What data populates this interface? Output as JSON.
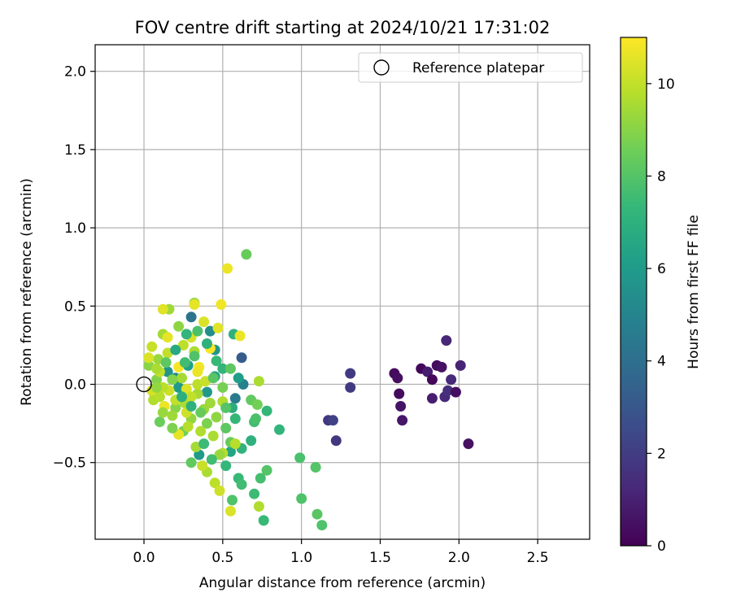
{
  "chart_data": {
    "type": "scatter",
    "title": "FOV centre drift starting at 2024/10/21 17:31:02",
    "xlabel": "Angular distance from reference (arcmin)",
    "ylabel": "Rotation from reference (arcmin)",
    "xlim": [
      -0.31,
      2.83
    ],
    "ylim": [
      -0.99,
      2.17
    ],
    "xticks": [
      "0.0",
      "0.5",
      "1.0",
      "1.5",
      "2.0",
      "2.5"
    ],
    "yticks": [
      "−0.5",
      "0.0",
      "0.5",
      "1.0",
      "1.5",
      "2.0"
    ],
    "grid": true,
    "legend": {
      "location": "upper-right",
      "entries": [
        "Reference platepar"
      ]
    },
    "reference_point": {
      "x": 0.0,
      "y": 0.0
    },
    "colorbar": {
      "label": "Hours from first FF file",
      "range": [
        0,
        11
      ],
      "ticks": [
        "0",
        "2",
        "4",
        "6",
        "8",
        "10"
      ],
      "colormap": [
        "#440154",
        "#482878",
        "#3e4989",
        "#31688e",
        "#26828e",
        "#1f9e89",
        "#35b779",
        "#6ece58",
        "#b5de2b",
        "#fde725"
      ]
    },
    "series": [
      {
        "color_value": "hours",
        "points": [
          {
            "x": 1.59,
            "y": 0.07,
            "h": 0.3
          },
          {
            "x": 1.61,
            "y": 0.04,
            "h": 0.4
          },
          {
            "x": 1.62,
            "y": -0.06,
            "h": 0.3
          },
          {
            "x": 1.63,
            "y": -0.14,
            "h": 0.6
          },
          {
            "x": 1.64,
            "y": -0.23,
            "h": 0.7
          },
          {
            "x": 1.76,
            "y": 0.1,
            "h": 0.2
          },
          {
            "x": 1.8,
            "y": 0.08,
            "h": 0.9
          },
          {
            "x": 1.83,
            "y": 0.03,
            "h": 0.2
          },
          {
            "x": 1.83,
            "y": -0.09,
            "h": 0.9
          },
          {
            "x": 1.86,
            "y": 0.12,
            "h": 0.3
          },
          {
            "x": 1.89,
            "y": 0.11,
            "h": 0.5
          },
          {
            "x": 1.91,
            "y": -0.08,
            "h": 1.3
          },
          {
            "x": 1.92,
            "y": 0.28,
            "h": 1.2
          },
          {
            "x": 1.93,
            "y": -0.04,
            "h": 1.5
          },
          {
            "x": 1.95,
            "y": 0.03,
            "h": 1.3
          },
          {
            "x": 1.98,
            "y": -0.05,
            "h": 0.4
          },
          {
            "x": 2.01,
            "y": 0.12,
            "h": 1.1
          },
          {
            "x": 2.06,
            "y": -0.38,
            "h": 0.5
          },
          {
            "x": 1.31,
            "y": 0.07,
            "h": 1.9
          },
          {
            "x": 1.31,
            "y": -0.02,
            "h": 1.9
          },
          {
            "x": 1.17,
            "y": -0.23,
            "h": 1.8
          },
          {
            "x": 1.2,
            "y": -0.23,
            "h": 2.2
          },
          {
            "x": 1.22,
            "y": -0.36,
            "h": 1.8
          },
          {
            "x": 0.62,
            "y": 0.17,
            "h": 3.2
          },
          {
            "x": 0.3,
            "y": 0.43,
            "h": 4.2
          },
          {
            "x": 0.58,
            "y": -0.09,
            "h": 4.5
          },
          {
            "x": 0.63,
            "y": 0.0,
            "h": 4.8
          },
          {
            "x": 0.42,
            "y": 0.34,
            "h": 5.4
          },
          {
            "x": 0.45,
            "y": 0.22,
            "h": 5.8
          },
          {
            "x": 0.6,
            "y": 0.04,
            "h": 6.1
          },
          {
            "x": 0.55,
            "y": -0.43,
            "h": 6.4
          },
          {
            "x": 0.2,
            "y": 0.04,
            "h": 5.2
          },
          {
            "x": 0.22,
            "y": -0.02,
            "h": 6.0
          },
          {
            "x": 0.15,
            "y": 0.08,
            "h": 5.7
          },
          {
            "x": 0.45,
            "y": 0.05,
            "h": 6.3
          },
          {
            "x": 0.4,
            "y": -0.05,
            "h": 5.9
          },
          {
            "x": 0.28,
            "y": 0.12,
            "h": 6.2
          },
          {
            "x": 0.35,
            "y": -0.45,
            "h": 6.0
          },
          {
            "x": 0.57,
            "y": 0.32,
            "h": 7.0
          },
          {
            "x": 0.5,
            "y": 0.1,
            "h": 7.2
          },
          {
            "x": 0.56,
            "y": -0.15,
            "h": 6.8
          },
          {
            "x": 0.58,
            "y": -0.22,
            "h": 7.3
          },
          {
            "x": 0.62,
            "y": -0.41,
            "h": 7.1
          },
          {
            "x": 0.6,
            "y": -0.6,
            "h": 7.4
          },
          {
            "x": 0.62,
            "y": -0.64,
            "h": 7.6
          },
          {
            "x": 0.68,
            "y": -0.36,
            "h": 7.0
          },
          {
            "x": 0.7,
            "y": -0.7,
            "h": 7.5
          },
          {
            "x": 0.74,
            "y": -0.6,
            "h": 7.7
          },
          {
            "x": 0.76,
            "y": -0.87,
            "h": 7.4
          },
          {
            "x": 0.7,
            "y": -0.24,
            "h": 7.6
          },
          {
            "x": 0.71,
            "y": -0.22,
            "h": 7.8
          },
          {
            "x": 0.78,
            "y": -0.17,
            "h": 7.3
          },
          {
            "x": 0.86,
            "y": -0.29,
            "h": 7.2
          },
          {
            "x": 0.56,
            "y": -0.74,
            "h": 7.9
          },
          {
            "x": 0.78,
            "y": -0.55,
            "h": 8.0
          },
          {
            "x": 0.99,
            "y": -0.47,
            "h": 7.8
          },
          {
            "x": 1.0,
            "y": -0.73,
            "h": 7.9
          },
          {
            "x": 1.09,
            "y": -0.53,
            "h": 8.0
          },
          {
            "x": 1.1,
            "y": -0.83,
            "h": 8.1
          },
          {
            "x": 1.13,
            "y": -0.9,
            "h": 7.9
          },
          {
            "x": 0.65,
            "y": 0.83,
            "h": 8.4
          },
          {
            "x": 0.55,
            "y": 0.1,
            "h": 8.2
          },
          {
            "x": 0.68,
            "y": -0.1,
            "h": 8.3
          },
          {
            "x": 0.72,
            "y": -0.13,
            "h": 8.6
          },
          {
            "x": 0.55,
            "y": -0.37,
            "h": 8.4
          },
          {
            "x": 0.52,
            "y": -0.28,
            "h": 8.2
          },
          {
            "x": 0.1,
            "y": -0.24,
            "h": 8.5
          },
          {
            "x": 0.3,
            "y": -0.5,
            "h": 8.3
          },
          {
            "x": 0.25,
            "y": -0.3,
            "h": 8.6
          },
          {
            "x": 0.06,
            "y": -0.05,
            "h": 8.7
          },
          {
            "x": 0.08,
            "y": 0.03,
            "h": 8.9
          },
          {
            "x": 0.2,
            "y": -0.15,
            "h": 9.0
          },
          {
            "x": 0.4,
            "y": -0.25,
            "h": 8.8
          },
          {
            "x": 0.32,
            "y": 0.52,
            "h": 9.2
          },
          {
            "x": 0.16,
            "y": 0.48,
            "h": 9.4
          },
          {
            "x": 0.22,
            "y": 0.37,
            "h": 9.1
          },
          {
            "x": 0.32,
            "y": 0.21,
            "h": 9.6
          },
          {
            "x": 0.12,
            "y": 0.32,
            "h": 9.5
          },
          {
            "x": 0.09,
            "y": 0.16,
            "h": 9.3
          },
          {
            "x": 0.03,
            "y": 0.12,
            "h": 9.0
          },
          {
            "x": 0.06,
            "y": -0.1,
            "h": 9.7
          },
          {
            "x": 0.1,
            "y": -0.08,
            "h": 9.8
          },
          {
            "x": 0.18,
            "y": -0.2,
            "h": 9.4
          },
          {
            "x": 0.26,
            "y": -0.12,
            "h": 9.6
          },
          {
            "x": 0.3,
            "y": -0.22,
            "h": 9.2
          },
          {
            "x": 0.34,
            "y": -0.06,
            "h": 9.5
          },
          {
            "x": 0.38,
            "y": -0.16,
            "h": 9.3
          },
          {
            "x": 0.42,
            "y": -0.12,
            "h": 9.4
          },
          {
            "x": 0.46,
            "y": -0.21,
            "h": 9.1
          },
          {
            "x": 0.5,
            "y": -0.11,
            "h": 9.7
          },
          {
            "x": 0.33,
            "y": -0.4,
            "h": 9.5
          },
          {
            "x": 0.4,
            "y": -0.56,
            "h": 9.6
          },
          {
            "x": 0.45,
            "y": -0.63,
            "h": 9.9
          },
          {
            "x": 0.48,
            "y": -0.68,
            "h": 10.2
          },
          {
            "x": 0.55,
            "y": -0.81,
            "h": 10.4
          },
          {
            "x": 0.37,
            "y": -0.52,
            "h": 10.1
          },
          {
            "x": 0.5,
            "y": -0.44,
            "h": 9.8
          },
          {
            "x": 0.48,
            "y": -0.45,
            "h": 9.3
          },
          {
            "x": 0.58,
            "y": -0.38,
            "h": 9.8
          },
          {
            "x": 0.73,
            "y": 0.02,
            "h": 9.6
          },
          {
            "x": 0.73,
            "y": -0.78,
            "h": 9.7
          },
          {
            "x": 0.22,
            "y": -0.32,
            "h": 10.6
          },
          {
            "x": 0.53,
            "y": 0.74,
            "h": 10.7
          },
          {
            "x": 0.49,
            "y": 0.51,
            "h": 10.8
          },
          {
            "x": 0.12,
            "y": 0.48,
            "h": 10.5
          },
          {
            "x": 0.32,
            "y": 0.51,
            "h": 10.6
          },
          {
            "x": 0.38,
            "y": 0.4,
            "h": 10.4
          },
          {
            "x": 0.47,
            "y": 0.36,
            "h": 10.5
          },
          {
            "x": 0.61,
            "y": 0.31,
            "h": 10.7
          },
          {
            "x": 0.42,
            "y": 0.23,
            "h": 10.9
          },
          {
            "x": 0.35,
            "y": 0.11,
            "h": 10.8
          },
          {
            "x": 0.34,
            "y": 0.08,
            "h": 10.7
          },
          {
            "x": 0.22,
            "y": 0.11,
            "h": 10.9
          },
          {
            "x": 0.15,
            "y": 0.3,
            "h": 10.6
          },
          {
            "x": 0.03,
            "y": 0.17,
            "h": 10.4
          },
          {
            "x": 0.13,
            "y": -0.14,
            "h": 10.7
          },
          {
            "x": 0.16,
            "y": -0.04,
            "h": 10.2
          },
          {
            "x": 0.05,
            "y": -0.04,
            "h": 10.3
          },
          {
            "x": 0.2,
            "y": -0.1,
            "h": 10.0
          },
          {
            "x": 0.27,
            "y": -0.03,
            "h": 10.4
          },
          {
            "x": 0.3,
            "y": -0.08,
            "h": 10.0
          },
          {
            "x": 0.34,
            "y": 0.0,
            "h": 9.9
          },
          {
            "x": 0.39,
            "y": 0.02,
            "h": 10.1
          },
          {
            "x": 0.27,
            "y": -0.18,
            "h": 10.2
          },
          {
            "x": 0.15,
            "y": 0.2,
            "h": 10.0
          },
          {
            "x": 0.25,
            "y": 0.25,
            "h": 9.9
          },
          {
            "x": 0.3,
            "y": 0.3,
            "h": 10.3
          },
          {
            "x": 0.05,
            "y": 0.24,
            "h": 10.1
          },
          {
            "x": 0.1,
            "y": 0.08,
            "h": 10.0
          },
          {
            "x": 0.12,
            "y": -0.02,
            "h": 9.9
          },
          {
            "x": 0.24,
            "y": 0.04,
            "h": 9.5
          },
          {
            "x": 0.28,
            "y": -0.27,
            "h": 9.8
          },
          {
            "x": 0.36,
            "y": -0.3,
            "h": 9.7
          },
          {
            "x": 0.44,
            "y": -0.33,
            "h": 9.6
          },
          {
            "x": 0.08,
            "y": -0.02,
            "h": 9.2
          },
          {
            "x": 0.14,
            "y": 0.14,
            "h": 8.2
          },
          {
            "x": 0.18,
            "y": 0.03,
            "h": 8.9
          },
          {
            "x": 0.26,
            "y": 0.14,
            "h": 7.6
          },
          {
            "x": 0.32,
            "y": 0.18,
            "h": 7.9
          },
          {
            "x": 0.36,
            "y": -0.18,
            "h": 8.4
          },
          {
            "x": 0.44,
            "y": 0.04,
            "h": 8.1
          },
          {
            "x": 0.5,
            "y": -0.02,
            "h": 8.7
          },
          {
            "x": 0.52,
            "y": -0.15,
            "h": 8.0
          },
          {
            "x": 0.46,
            "y": 0.15,
            "h": 7.4
          },
          {
            "x": 0.4,
            "y": 0.26,
            "h": 7.0
          },
          {
            "x": 0.34,
            "y": 0.34,
            "h": 7.8
          },
          {
            "x": 0.27,
            "y": 0.32,
            "h": 7.2
          },
          {
            "x": 0.2,
            "y": 0.22,
            "h": 6.6
          },
          {
            "x": 0.24,
            "y": -0.08,
            "h": 6.9
          },
          {
            "x": 0.3,
            "y": -0.14,
            "h": 7.0
          },
          {
            "x": 0.38,
            "y": -0.38,
            "h": 7.5
          },
          {
            "x": 0.43,
            "y": -0.48,
            "h": 7.6
          },
          {
            "x": 0.52,
            "y": -0.52,
            "h": 7.3
          },
          {
            "x": 0.18,
            "y": -0.28,
            "h": 8.8
          },
          {
            "x": 0.12,
            "y": -0.18,
            "h": 9.3
          },
          {
            "x": 0.08,
            "y": 0.1,
            "h": 9.6
          }
        ]
      }
    ]
  }
}
